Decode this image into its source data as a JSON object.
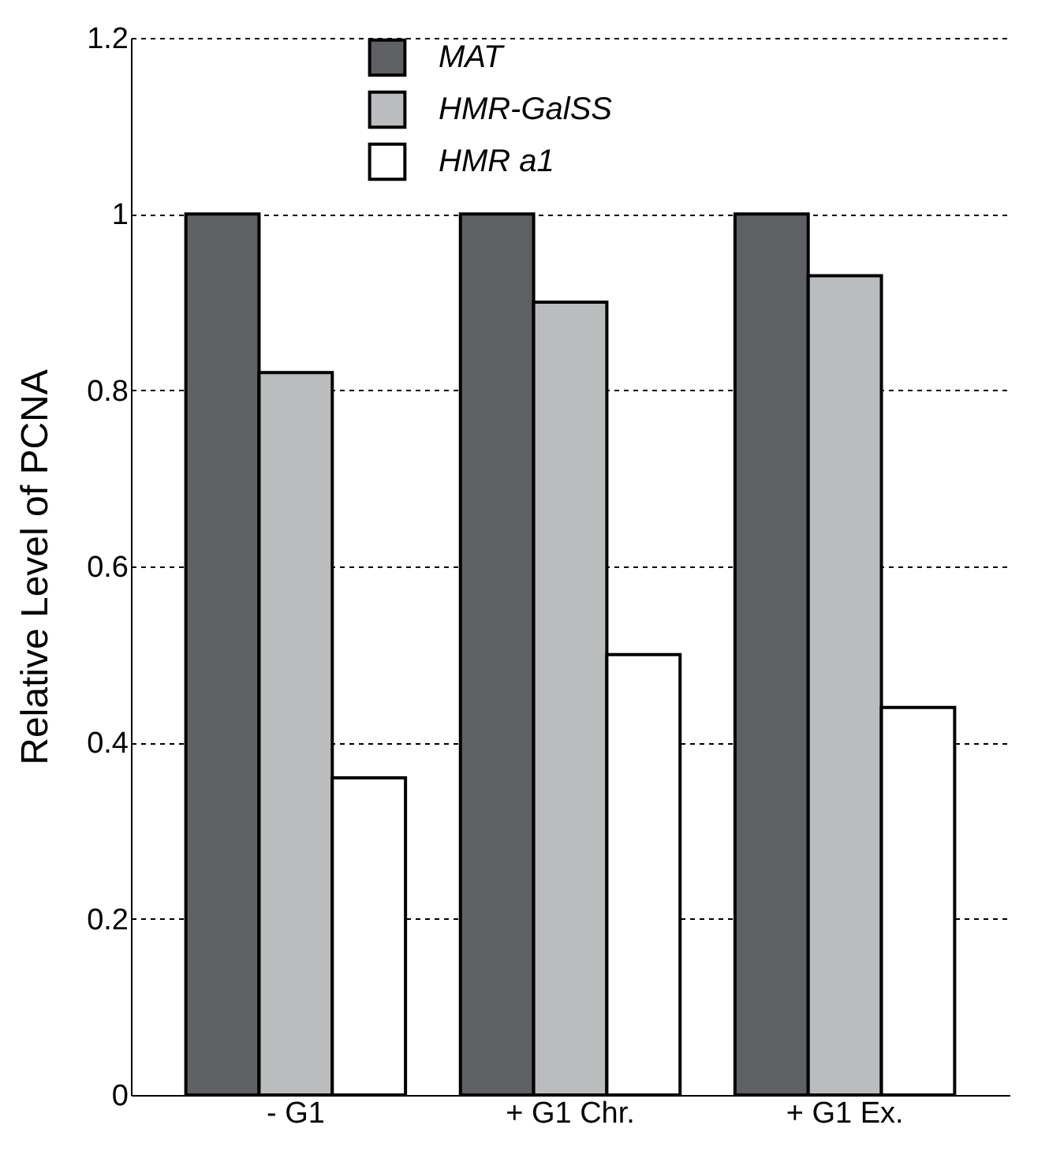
{
  "chart_data": {
    "type": "bar",
    "ylabel": "Relative Level of PCNA",
    "categories": [
      "- G1",
      "+ G1 Chr.",
      "+ G1 Ex."
    ],
    "series": [
      {
        "name": "MAT",
        "color": "#5f6064",
        "values": [
          1,
          1,
          1
        ]
      },
      {
        "name": "HMR-GalSS",
        "color": "#bbbcbe",
        "values": [
          0.82,
          0.9,
          0.93
        ]
      },
      {
        "name": "HMR a1",
        "color": "#ffffff",
        "values": [
          0.36,
          0.5,
          0.44
        ]
      }
    ],
    "ylim": [
      0,
      1.2
    ],
    "yticks": [
      0,
      0.2,
      0.4,
      0.6,
      0.8,
      1,
      1.2
    ],
    "grid": "y",
    "legend": "top"
  }
}
